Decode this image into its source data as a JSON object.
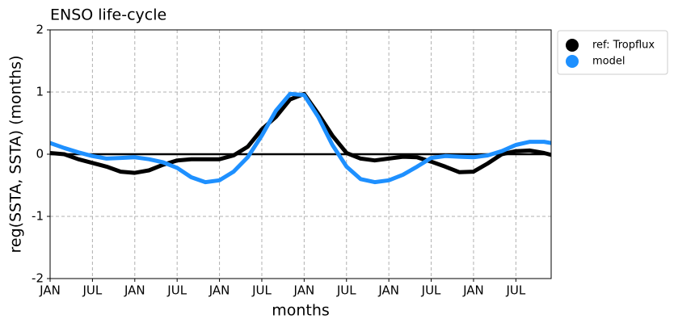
{
  "chart_data": {
    "type": "line",
    "title": "ENSO life-cycle",
    "xlabel": "months",
    "ylabel": "reg(SSTA, SSTA) (months)",
    "x": [
      0,
      2,
      4,
      6,
      8,
      10,
      12,
      14,
      16,
      18,
      20,
      22,
      24,
      26,
      28,
      30,
      32,
      34,
      36,
      38,
      40,
      42,
      44,
      46,
      48,
      50,
      52,
      54,
      56,
      58,
      60,
      62,
      64,
      66,
      68,
      70,
      71
    ],
    "series": [
      {
        "name": "ref: Tropflux",
        "color": "#000000",
        "values": [
          0.02,
          0.0,
          -0.08,
          -0.14,
          -0.2,
          -0.28,
          -0.3,
          -0.26,
          -0.17,
          -0.1,
          -0.08,
          -0.08,
          -0.08,
          -0.02,
          0.12,
          0.4,
          0.6,
          0.88,
          0.97,
          0.65,
          0.3,
          0.02,
          -0.07,
          -0.1,
          -0.07,
          -0.04,
          -0.05,
          -0.12,
          -0.2,
          -0.29,
          -0.28,
          -0.15,
          0.0,
          0.05,
          0.06,
          0.02,
          -0.01
        ]
      },
      {
        "name": "model",
        "color": "#1e90ff",
        "values": [
          0.18,
          0.1,
          0.03,
          -0.03,
          -0.07,
          -0.06,
          -0.05,
          -0.08,
          -0.13,
          -0.22,
          -0.37,
          -0.45,
          -0.42,
          -0.28,
          -0.05,
          0.3,
          0.7,
          0.97,
          0.95,
          0.6,
          0.15,
          -0.2,
          -0.4,
          -0.45,
          -0.42,
          -0.33,
          -0.2,
          -0.06,
          -0.03,
          -0.04,
          -0.05,
          -0.02,
          0.05,
          0.15,
          0.2,
          0.2,
          0.18
        ]
      }
    ],
    "xlim": [
      0,
      71
    ],
    "xticks": [
      {
        "value": 0,
        "label": "JAN"
      },
      {
        "value": 6,
        "label": "JUL"
      },
      {
        "value": 12,
        "label": "JAN"
      },
      {
        "value": 18,
        "label": "JUL"
      },
      {
        "value": 24,
        "label": "JAN"
      },
      {
        "value": 30,
        "label": "JUL"
      },
      {
        "value": 36,
        "label": "JAN"
      },
      {
        "value": 42,
        "label": "JUL"
      },
      {
        "value": 48,
        "label": "JAN"
      },
      {
        "value": 54,
        "label": "JUL"
      },
      {
        "value": 60,
        "label": "JAN"
      },
      {
        "value": 66,
        "label": "JUL"
      }
    ],
    "ylim": [
      -2,
      2
    ],
    "yticks": [
      -2,
      -1,
      0,
      1,
      2
    ],
    "grid": true,
    "legend": "outside-upper-right"
  }
}
